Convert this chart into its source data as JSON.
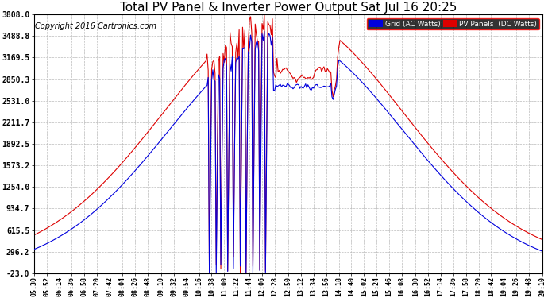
{
  "title": "Total PV Panel & Inverter Power Output Sat Jul 16 20:25",
  "copyright": "Copyright 2016 Cartronics.com",
  "legend_grid": "Grid (AC Watts)",
  "legend_pv": "PV Panels  (DC Watts)",
  "grid_color": "#0000dd",
  "pv_color": "#dd0000",
  "yticks": [
    -23.0,
    296.2,
    615.5,
    934.7,
    1254.0,
    1573.2,
    1892.5,
    2211.7,
    2531.0,
    2850.3,
    3169.5,
    3488.8,
    3808.0
  ],
  "ymin": -23.0,
  "ymax": 3808.0,
  "background_color": "#ffffff",
  "plot_bg_color": "#ffffff",
  "grid_line_color": "#bbbbbb",
  "title_fontsize": 11,
  "copyright_fontsize": 7,
  "tick_labels_x": [
    "05:30",
    "05:52",
    "06:14",
    "06:36",
    "06:58",
    "07:20",
    "07:42",
    "08:04",
    "08:26",
    "08:48",
    "09:10",
    "09:32",
    "09:54",
    "10:16",
    "10:38",
    "11:00",
    "11:22",
    "11:44",
    "12:06",
    "12:28",
    "12:50",
    "13:12",
    "13:34",
    "13:56",
    "14:18",
    "14:40",
    "15:02",
    "15:24",
    "15:46",
    "16:08",
    "16:30",
    "16:52",
    "17:14",
    "17:36",
    "17:58",
    "18:20",
    "18:42",
    "19:04",
    "19:26",
    "19:48",
    "20:10"
  ]
}
